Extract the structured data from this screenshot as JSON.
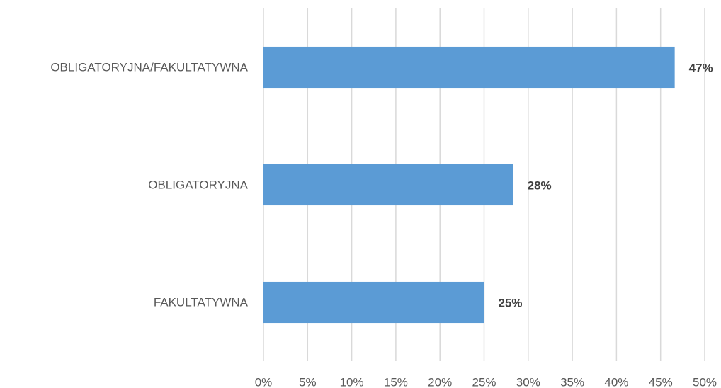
{
  "chart_data": {
    "type": "bar",
    "orientation": "horizontal",
    "categories": [
      "OBLIGATORYJNA/FAKULTATYWNA",
      "OBLIGATORYJNA",
      "FAKULTATYWNA"
    ],
    "values": [
      46.6,
      28.3,
      25.0
    ],
    "value_labels": [
      "47%",
      "28%",
      "25%"
    ],
    "color": "#5b9bd5",
    "xlim": [
      0,
      50
    ],
    "xticks": [
      {
        "value": 0,
        "label": "0%"
      },
      {
        "value": 5,
        "label": "5%"
      },
      {
        "value": 10,
        "label": "10%"
      },
      {
        "value": 15,
        "label": "15%"
      },
      {
        "value": 20,
        "label": "20%"
      },
      {
        "value": 25,
        "label": "25%"
      },
      {
        "value": 30,
        "label": "30%"
      },
      {
        "value": 35,
        "label": "35%"
      },
      {
        "value": 40,
        "label": "40%"
      },
      {
        "value": 45,
        "label": "45%"
      },
      {
        "value": 50,
        "label": "50%"
      }
    ],
    "grid": true
  }
}
